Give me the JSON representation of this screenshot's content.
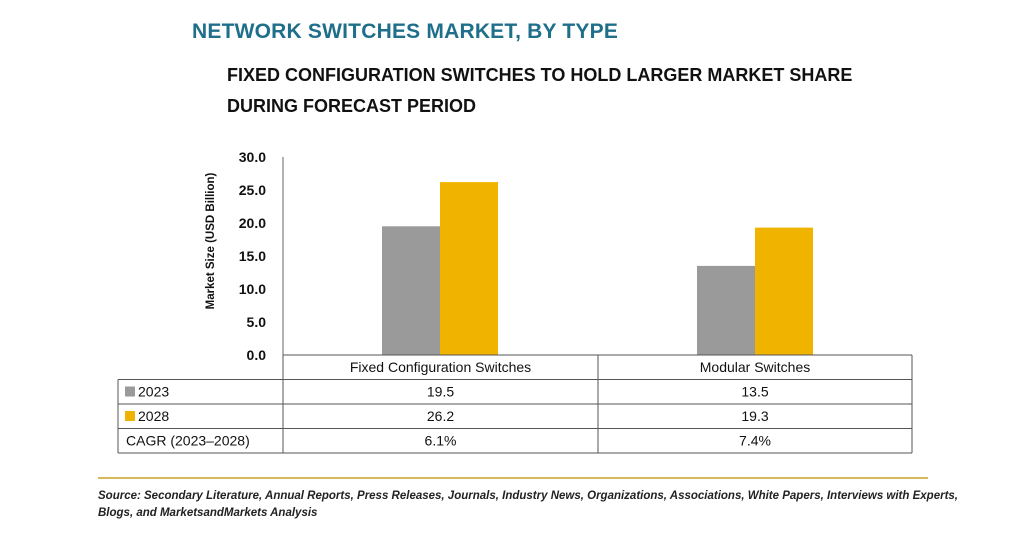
{
  "title": "NETWORK SWITCHES MARKET, BY TYPE",
  "subtitle": "FIXED CONFIGURATION SWITCHES TO HOLD LARGER MARKET SHARE DURING FORECAST PERIOD",
  "source": "Source: Secondary Literature, Annual Reports, Press Releases, Journals, Industry News, Organizations, Associations, White Papers, Interviews with Experts, Blogs, and MarketsandMarkets Analysis",
  "colors": {
    "title": "#1f6f8b",
    "series_2023": "#9a9a9a",
    "series_2028": "#f0b400",
    "rule": "#c9a227"
  },
  "chart_data": {
    "type": "bar",
    "title": "NETWORK SWITCHES MARKET, BY TYPE",
    "ylabel": "Market Size (USD Billion)",
    "xlabel": "",
    "ylim": [
      0,
      30
    ],
    "yticks": [
      "0.0",
      "5.0",
      "10.0",
      "15.0",
      "20.0",
      "25.0",
      "30.0"
    ],
    "categories": [
      "Fixed Configuration Switches",
      "Modular Switches"
    ],
    "series": [
      {
        "name": "2023",
        "values": [
          19.5,
          13.5
        ],
        "labels": [
          "19.5",
          "13.5"
        ]
      },
      {
        "name": "2028",
        "values": [
          26.2,
          19.3
        ],
        "labels": [
          "26.2",
          "19.3"
        ]
      }
    ],
    "table_rows": [
      {
        "label": "CAGR (2023–2028)",
        "values": [
          "6.1%",
          "7.4%"
        ]
      }
    ],
    "grid": false,
    "legend": "in data table"
  }
}
